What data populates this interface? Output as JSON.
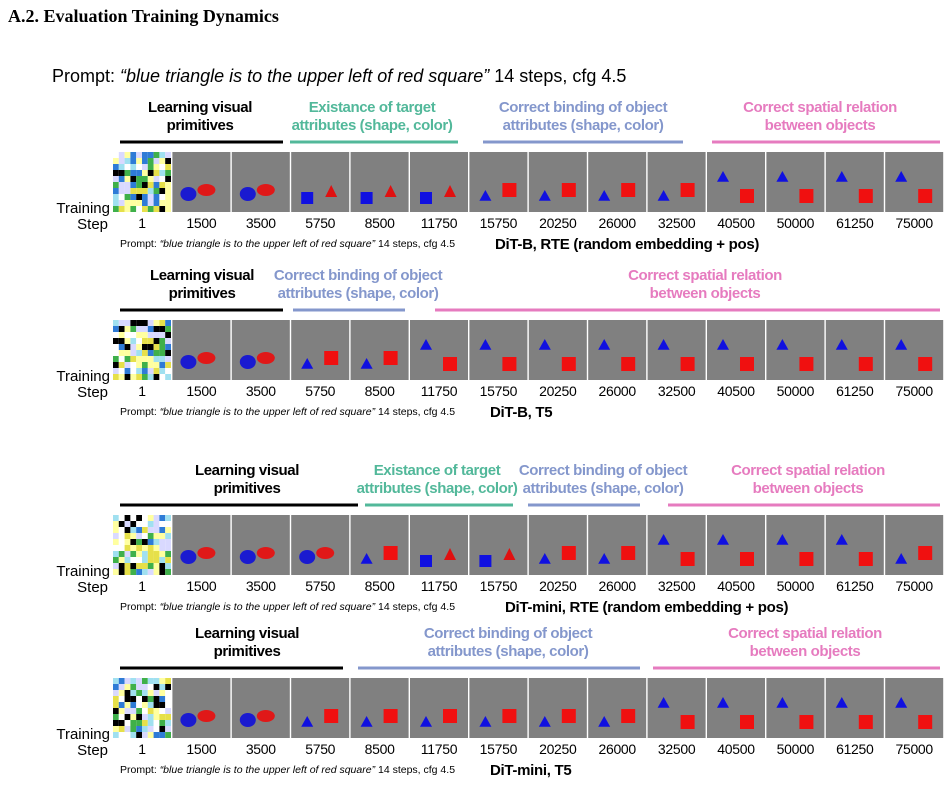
{
  "heading": "A.2. Evaluation Training Dynamics",
  "prompt": {
    "label": "Prompt:",
    "text": "“blue triangle is to the upper left of red square”",
    "settings": "14 steps, cfg 4.5"
  },
  "panels": [
    {
      "phases": [
        {
          "lines": [
            "Learning visual",
            "primitives"
          ],
          "color": "#000000"
        },
        {
          "lines": [
            "Existance of target",
            "attributes (shape, color)"
          ],
          "color": "#52b89a"
        },
        {
          "lines": [
            "Correct binding of object",
            "attributes (shape, color)"
          ],
          "color": "#8497cc"
        },
        {
          "lines": [
            "Correct spatial relation",
            "between objects"
          ],
          "color": "#e67bbf"
        }
      ],
      "row_label": [
        "Training",
        "Step"
      ],
      "steps": [
        1,
        1500,
        3500,
        5750,
        8500,
        11750,
        15750,
        20250,
        26000,
        32500,
        40500,
        50000,
        61250,
        75000
      ],
      "prompt": {
        "label": "Prompt:",
        "text": "“blue triangle is to the upper left of red square”",
        "settings": "14 steps, cfg 4.5"
      },
      "model": "DiT-B, RTE (random embedding + pos)"
    },
    {
      "phases": [
        {
          "lines": [
            "Learning visual",
            "primitives"
          ],
          "color": "#000000"
        },
        {
          "lines": [
            "Correct binding of object",
            "attributes (shape, color)"
          ],
          "color": "#8497cc"
        },
        {
          "lines": [
            "Correct spatial relation",
            "between objects"
          ],
          "color": "#e67bbf"
        }
      ],
      "row_label": [
        "Training",
        "Step"
      ],
      "steps": [
        1,
        1500,
        3500,
        5750,
        8500,
        11750,
        15750,
        20250,
        26000,
        32500,
        40500,
        50000,
        61250,
        75000
      ],
      "prompt": {
        "label": "Prompt:",
        "text": "“blue triangle is to the upper left of red square”",
        "settings": "14 steps, cfg 4.5"
      },
      "model": "DiT-B, T5"
    },
    {
      "phases": [
        {
          "lines": [
            "Learning visual",
            "primitives"
          ],
          "color": "#000000"
        },
        {
          "lines": [
            "Existance of target",
            "attributes (shape, color)"
          ],
          "color": "#52b89a"
        },
        {
          "lines": [
            "Correct binding of object",
            "attributes (shape, color)"
          ],
          "color": "#8497cc"
        },
        {
          "lines": [
            "Correct spatial relation",
            "between objects"
          ],
          "color": "#e67bbf"
        }
      ],
      "row_label": [
        "Training",
        "Step"
      ],
      "steps": [
        1,
        1500,
        3500,
        5750,
        8500,
        11750,
        15750,
        20250,
        26000,
        32500,
        40500,
        50000,
        61250,
        75000
      ],
      "prompt": {
        "label": "Prompt:",
        "text": "“blue triangle is to the upper left of red square”",
        "settings": "14 steps, cfg 4.5"
      },
      "model": "DiT-mini, RTE (random embedding + pos)"
    },
    {
      "phases": [
        {
          "lines": [
            "Learning visual",
            "primitives"
          ],
          "color": "#000000"
        },
        {
          "lines": [
            "Correct binding of object",
            "attributes (shape, color)"
          ],
          "color": "#8497cc"
        },
        {
          "lines": [
            "Correct spatial relation",
            "between objects"
          ],
          "color": "#e67bbf"
        }
      ],
      "row_label": [
        "Training",
        "Step"
      ],
      "steps": [
        1,
        1500,
        3500,
        5750,
        8500,
        11750,
        15750,
        20250,
        26000,
        32500,
        40500,
        50000,
        61250,
        75000
      ],
      "prompt": {
        "label": "Prompt:",
        "text": "“blue triangle is to the upper left of red square”",
        "settings": "14 steps, cfg 4.5"
      },
      "model": "DiT-mini, T5"
    }
  ]
}
